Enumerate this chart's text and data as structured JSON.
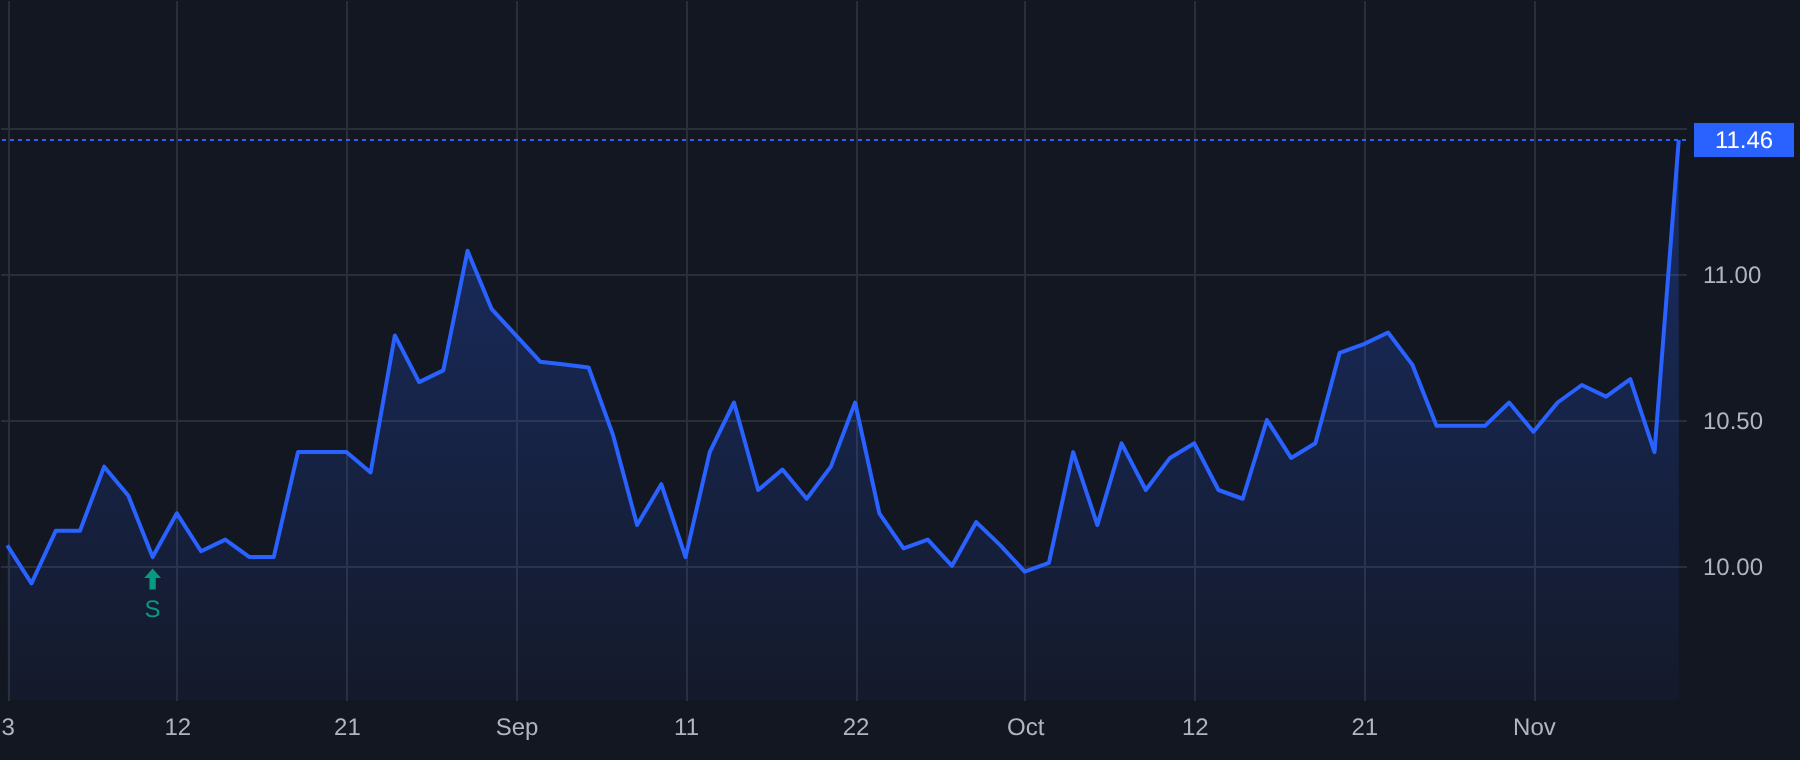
{
  "chart_data": {
    "type": "area",
    "categories": [
      "3",
      null,
      null,
      null,
      null,
      null,
      null,
      "12",
      null,
      null,
      null,
      null,
      null,
      null,
      "21",
      null,
      null,
      null,
      null,
      null,
      null,
      "Sep",
      null,
      null,
      null,
      null,
      null,
      null,
      "11",
      null,
      null,
      null,
      null,
      null,
      null,
      "22",
      null,
      null,
      null,
      null,
      null,
      null,
      "Oct",
      null,
      null,
      null,
      null,
      null,
      null,
      "12",
      null,
      null,
      null,
      null,
      null,
      null,
      "21",
      null,
      null,
      null,
      null,
      null,
      null,
      "Nov",
      null,
      null,
      null,
      null,
      null,
      null
    ],
    "series": [
      {
        "color": "#2962ff",
        "values": [
          10.07,
          9.94,
          10.12,
          10.12,
          10.34,
          10.24,
          10.03,
          10.18,
          10.05,
          10.09,
          10.03,
          10.03,
          10.39,
          10.39,
          10.39,
          10.32,
          10.79,
          10.63,
          10.67,
          11.08,
          10.88,
          10.79,
          10.7,
          10.69,
          10.68,
          10.45,
          10.14,
          10.28,
          10.03,
          10.39,
          10.56,
          10.26,
          10.33,
          10.23,
          10.34,
          10.56,
          10.18,
          10.06,
          10.09,
          10.0,
          10.15,
          10.07,
          9.98,
          10.01,
          10.39,
          10.14,
          10.42,
          10.26,
          10.37,
          10.42,
          10.26,
          10.23,
          10.5,
          10.37,
          10.42,
          10.73,
          10.76,
          10.8,
          10.69,
          10.48,
          10.48,
          10.48,
          10.56,
          10.46,
          10.56,
          10.62,
          10.58,
          10.64,
          10.39,
          11.46
        ]
      }
    ],
    "ylim": [
      9.54,
      11.94
    ],
    "yticks": [
      {
        "value": 10,
        "label": "10.00"
      },
      {
        "value": 10.5,
        "label": "10.50"
      },
      {
        "value": 11,
        "label": "11.00"
      },
      {
        "value": 11.5,
        "label": null
      }
    ],
    "grid": true,
    "ref_lines": [
      {
        "axis": "y",
        "value": 11.46,
        "label": "11.46",
        "color": "#2962ff",
        "line_style": "dotted"
      }
    ],
    "annotations": [
      {
        "text": "S",
        "y": 10.03
      }
    ]
  }
}
